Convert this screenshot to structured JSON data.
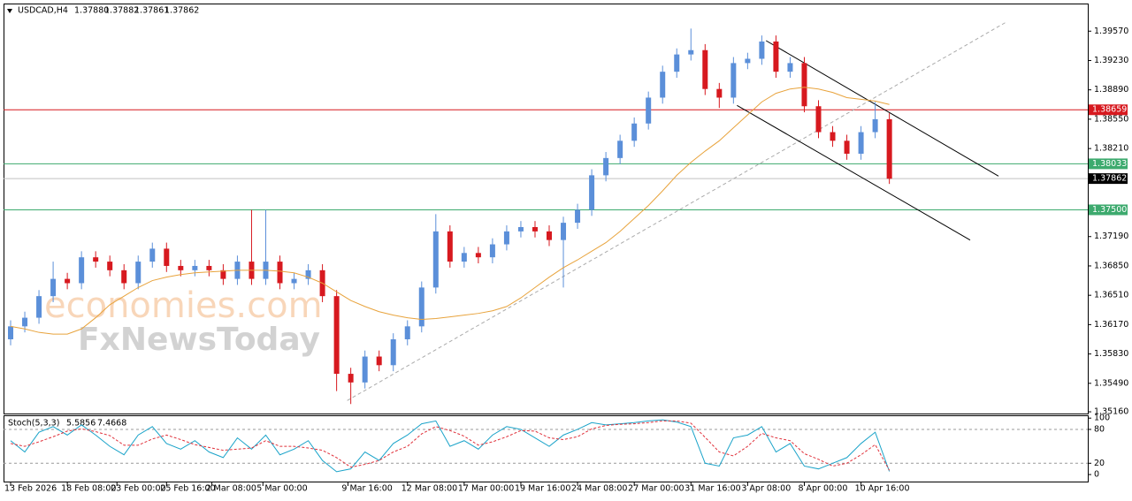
{
  "chart_data": {
    "type": "candlestick",
    "symbol": "USDCAD,H4",
    "quote": [
      "1.37880",
      "1.37882",
      "1.37861",
      "1.37862"
    ],
    "watermark": [
      "economies.com",
      "FxNewsToday"
    ],
    "up_color": "#5b8fd9",
    "down_color": "#d7191f",
    "xlim": [
      -0.5,
      76
    ],
    "ylim": [
      1.3514,
      1.3989
    ],
    "yticks": [
      {
        "value": 1.3957,
        "label": "1.39570"
      },
      {
        "value": 1.3923,
        "label": "1.39230"
      },
      {
        "value": 1.3889,
        "label": "1.38890"
      },
      {
        "value": 1.3855,
        "label": "1.38550"
      },
      {
        "value": 1.3821,
        "label": "1.38210"
      },
      {
        "value": 1.3719,
        "label": "1.37190"
      },
      {
        "value": 1.3685,
        "label": "1.36850"
      },
      {
        "value": 1.3651,
        "label": "1.36510"
      },
      {
        "value": 1.3617,
        "label": "1.36170"
      },
      {
        "value": 1.3583,
        "label": "1.35830"
      },
      {
        "value": 1.3549,
        "label": "1.35490"
      },
      {
        "value": 1.3516,
        "label": "1.35160"
      }
    ],
    "xticks": [
      {
        "value": 0,
        "label": "13 Feb 2026"
      },
      {
        "value": 4,
        "label": "18 Feb 08:00"
      },
      {
        "value": 7.5,
        "label": "23 Feb 00:00"
      },
      {
        "value": 11,
        "label": "25 Feb 16:00"
      },
      {
        "value": 14.2,
        "label": "2 Mar 08:00"
      },
      {
        "value": 17.8,
        "label": "5 Mar 00:00"
      },
      {
        "value": 23.8,
        "label": "9 Mar 16:00"
      },
      {
        "value": 28,
        "label": "12 Mar 08:00"
      },
      {
        "value": 32,
        "label": "17 Mar 00:00"
      },
      {
        "value": 36,
        "label": "19 Mar 16:00"
      },
      {
        "value": 40,
        "label": "24 Mar 08:00"
      },
      {
        "value": 44,
        "label": "27 Mar 00:00"
      },
      {
        "value": 48,
        "label": "31 Mar 16:00"
      },
      {
        "value": 52,
        "label": "3 Apr 08:00"
      },
      {
        "value": 56,
        "label": "8 Apr 00:00"
      },
      {
        "value": 60,
        "label": "10 Apr 16:00"
      }
    ],
    "levels": [
      {
        "value": 1.38659,
        "color": "#d7191f"
      },
      {
        "value": 1.38033,
        "color": "#3daa6e"
      },
      {
        "value": 1.375,
        "label": "1.37500",
        "color": "#3daa6e"
      },
      {
        "value": 1.37862,
        "color": "#000000"
      }
    ],
    "ohlc": [
      [
        1.36,
        1.3622,
        1.3593,
        1.3615
      ],
      [
        1.3615,
        1.3632,
        1.3608,
        1.3625
      ],
      [
        1.3625,
        1.3657,
        1.3618,
        1.365
      ],
      [
        1.365,
        1.369,
        1.3643,
        1.367
      ],
      [
        1.367,
        1.3677,
        1.3658,
        1.3665
      ],
      [
        1.3665,
        1.3702,
        1.3658,
        1.3695
      ],
      [
        1.3695,
        1.3702,
        1.3683,
        1.369
      ],
      [
        1.369,
        1.3697,
        1.3673,
        1.368
      ],
      [
        1.368,
        1.3687,
        1.3658,
        1.3665
      ],
      [
        1.3665,
        1.3697,
        1.3658,
        1.369
      ],
      [
        1.369,
        1.3712,
        1.3683,
        1.3705
      ],
      [
        1.3705,
        1.3712,
        1.3678,
        1.3685
      ],
      [
        1.3685,
        1.3692,
        1.3673,
        1.368
      ],
      [
        1.368,
        1.3692,
        1.3673,
        1.3685
      ],
      [
        1.3685,
        1.3692,
        1.3673,
        1.368
      ],
      [
        1.368,
        1.3687,
        1.3663,
        1.367
      ],
      [
        1.367,
        1.3697,
        1.3663,
        1.369
      ],
      [
        1.369,
        1.375,
        1.3663,
        1.367
      ],
      [
        1.367,
        1.375,
        1.3663,
        1.369
      ],
      [
        1.369,
        1.3697,
        1.3658,
        1.3665
      ],
      [
        1.3665,
        1.3677,
        1.3658,
        1.367
      ],
      [
        1.367,
        1.3687,
        1.3663,
        1.368
      ],
      [
        1.368,
        1.3687,
        1.3643,
        1.365
      ],
      [
        1.365,
        1.3657,
        1.354,
        1.356
      ],
      [
        1.356,
        1.3567,
        1.3525,
        1.355
      ],
      [
        1.355,
        1.3587,
        1.3543,
        1.358
      ],
      [
        1.358,
        1.3587,
        1.3563,
        1.357
      ],
      [
        1.357,
        1.3607,
        1.3563,
        1.36
      ],
      [
        1.36,
        1.3622,
        1.3593,
        1.3615
      ],
      [
        1.3615,
        1.3667,
        1.3608,
        1.366
      ],
      [
        1.366,
        1.3745,
        1.3653,
        1.3725
      ],
      [
        1.3725,
        1.3732,
        1.3683,
        1.369
      ],
      [
        1.369,
        1.3707,
        1.3683,
        1.37
      ],
      [
        1.37,
        1.3707,
        1.3688,
        1.3695
      ],
      [
        1.3695,
        1.3717,
        1.3688,
        1.371
      ],
      [
        1.371,
        1.3732,
        1.3703,
        1.3725
      ],
      [
        1.3725,
        1.3737,
        1.3718,
        1.373
      ],
      [
        1.373,
        1.3737,
        1.3718,
        1.3725
      ],
      [
        1.3725,
        1.3732,
        1.3708,
        1.3715
      ],
      [
        1.3715,
        1.3742,
        1.366,
        1.3735
      ],
      [
        1.3735,
        1.3757,
        1.3728,
        1.375
      ],
      [
        1.375,
        1.3797,
        1.3743,
        1.379
      ],
      [
        1.379,
        1.3817,
        1.3783,
        1.381
      ],
      [
        1.381,
        1.3837,
        1.3803,
        1.383
      ],
      [
        1.383,
        1.3857,
        1.3823,
        1.385
      ],
      [
        1.385,
        1.3887,
        1.3843,
        1.388
      ],
      [
        1.388,
        1.3917,
        1.3873,
        1.391
      ],
      [
        1.391,
        1.3937,
        1.3903,
        1.393
      ],
      [
        1.393,
        1.396,
        1.3923,
        1.3935
      ],
      [
        1.3935,
        1.3942,
        1.3883,
        1.389
      ],
      [
        1.389,
        1.3897,
        1.3868,
        1.388
      ],
      [
        1.388,
        1.3927,
        1.3873,
        1.392
      ],
      [
        1.392,
        1.3932,
        1.3913,
        1.3925
      ],
      [
        1.3925,
        1.3952,
        1.3918,
        1.3945
      ],
      [
        1.3945,
        1.3952,
        1.3903,
        1.391
      ],
      [
        1.391,
        1.3927,
        1.3903,
        1.392
      ],
      [
        1.392,
        1.3927,
        1.3863,
        1.387
      ],
      [
        1.387,
        1.3877,
        1.3833,
        1.384
      ],
      [
        1.384,
        1.3847,
        1.3823,
        1.383
      ],
      [
        1.383,
        1.3837,
        1.3808,
        1.3815
      ],
      [
        1.3815,
        1.3847,
        1.3808,
        1.384
      ],
      [
        1.384,
        1.3875,
        1.3833,
        1.3855
      ],
      [
        1.3855,
        1.3862,
        1.378,
        1.3786
      ]
    ],
    "ma": {
      "color": "#e8a33c",
      "values": [
        1.3615,
        1.3612,
        1.3608,
        1.3606,
        1.3606,
        1.3612,
        1.3625,
        1.364,
        1.365,
        1.366,
        1.3668,
        1.3672,
        1.3675,
        1.3677,
        1.3678,
        1.3679,
        1.368,
        1.368,
        1.368,
        1.3679,
        1.3677,
        1.3672,
        1.3665,
        1.3655,
        1.3645,
        1.3638,
        1.3632,
        1.3628,
        1.3625,
        1.3623,
        1.3624,
        1.3626,
        1.3628,
        1.363,
        1.3633,
        1.3638,
        1.3648,
        1.366,
        1.3672,
        1.3683,
        1.3692,
        1.3702,
        1.3712,
        1.3725,
        1.374,
        1.3755,
        1.3772,
        1.379,
        1.3805,
        1.3818,
        1.383,
        1.3845,
        1.386,
        1.3875,
        1.3885,
        1.389,
        1.3892,
        1.389,
        1.3886,
        1.388,
        1.3878,
        1.3876,
        1.3872
      ]
    },
    "trendlines": [
      {
        "from": [
          23.75,
          1.3529
        ],
        "to": [
          70.3,
          1.3968
        ],
        "color": "#aaaaaa",
        "dashed": true
      },
      {
        "from": [
          53.3,
          1.3946
        ],
        "to": [
          69.7,
          1.3789
        ],
        "color": "#000000",
        "dashed": false
      },
      {
        "from": [
          51.25,
          1.3871
        ],
        "to": [
          67.7,
          1.3715
        ],
        "color": "#000000",
        "dashed": false
      }
    ],
    "stoch": {
      "title": "Stoch(5,3,3)",
      "main_label": "5.5856",
      "signal_label": "7.4668",
      "ylim": [
        -14,
        105
      ],
      "yticks": [
        100,
        80,
        20,
        0
      ],
      "levels": [
        80,
        20
      ],
      "series": [
        {
          "color": "#1aa3c9",
          "values": [
            60,
            40,
            75,
            85,
            70,
            88,
            70,
            50,
            35,
            70,
            85,
            55,
            45,
            60,
            40,
            30,
            65,
            45,
            70,
            35,
            45,
            60,
            25,
            5,
            10,
            40,
            25,
            55,
            70,
            90,
            95,
            50,
            60,
            45,
            70,
            85,
            80,
            65,
            50,
            70,
            80,
            92,
            88,
            90,
            92,
            95,
            97,
            93,
            85,
            20,
            15,
            65,
            70,
            85,
            40,
            55,
            15,
            10,
            20,
            30,
            55,
            75,
            5.5856
          ]
        },
        {
          "color": "#e0303a",
          "dashed": true,
          "values": [
            55,
            50,
            58,
            67,
            77,
            81,
            76,
            69,
            52,
            52,
            63,
            70,
            62,
            53,
            48,
            43,
            45,
            47,
            60,
            50,
            50,
            47,
            43,
            30,
            13,
            18,
            25,
            40,
            50,
            72,
            85,
            78,
            68,
            52,
            58,
            67,
            78,
            77,
            65,
            62,
            67,
            81,
            87,
            89,
            90,
            92,
            95,
            95,
            91,
            66,
            40,
            33,
            50,
            73,
            65,
            60,
            37,
            27,
            15,
            20,
            35,
            53,
            7.4668
          ]
        }
      ]
    }
  }
}
